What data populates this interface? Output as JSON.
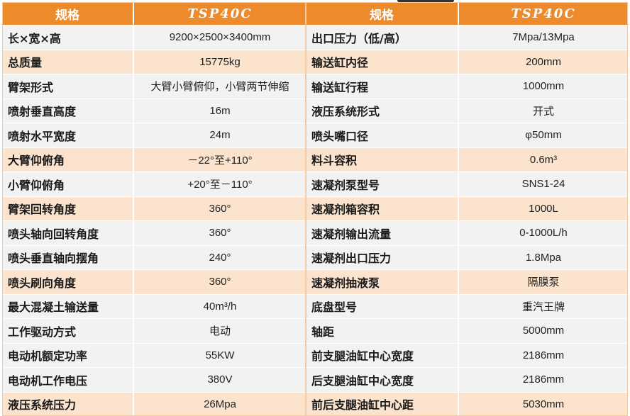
{
  "left": {
    "header": {
      "spec": "规格",
      "model": "TSP40C"
    },
    "rows": [
      {
        "label": "长×宽×高",
        "value": "9200×2500×3400mm"
      },
      {
        "label": "总质量",
        "value": "15775kg"
      },
      {
        "label": "臂架形式",
        "value": "大臂小臂俯仰，小臂两节伸缩"
      },
      {
        "label": "喷射垂直高度",
        "value": "16m"
      },
      {
        "label": "喷射水平宽度",
        "value": "24m"
      },
      {
        "label": "大臂仰俯角",
        "value": "－22°至+110°"
      },
      {
        "label": "小臂仰俯角",
        "value": "+20°至－110°"
      },
      {
        "label": "臂架回转角度",
        "value": "360°"
      },
      {
        "label": "喷头轴向回转角度",
        "value": "360°"
      },
      {
        "label": "喷头垂直轴向摆角",
        "value": "240°"
      },
      {
        "label": "喷头刷向角度",
        "value": "360°"
      },
      {
        "label": "最大混凝土输送量",
        "value": "40m³/h"
      },
      {
        "label": "工作驱动方式",
        "value": "电动"
      },
      {
        "label": "电动机额定功率",
        "value": "55KW"
      },
      {
        "label": "电动机工作电压",
        "value": "380V"
      },
      {
        "label": "液压系统压力",
        "value": "26Mpa"
      }
    ]
  },
  "right": {
    "header": {
      "spec": "规格",
      "model": "TSP40C"
    },
    "rows": [
      {
        "label": "出口压力（低/高）",
        "value": "7Mpa/13Mpa"
      },
      {
        "label": "输送缸内径",
        "value": "200mm"
      },
      {
        "label": "输送缸行程",
        "value": "1000mm"
      },
      {
        "label": "液压系统形式",
        "value": "开式"
      },
      {
        "label": "喷头嘴口径",
        "value": "φ50mm"
      },
      {
        "label": "料斗容积",
        "value": "0.6m³"
      },
      {
        "label": "速凝剂泵型号",
        "value": "SNS1-24"
      },
      {
        "label": "速凝剂箱容积",
        "value": "1000L"
      },
      {
        "label": "速凝剂输出流量",
        "value": "0-1000L/h"
      },
      {
        "label": "速凝剂出口压力",
        "value": "1.8Mpa"
      },
      {
        "label": "速凝剂抽液泵",
        "value": "隔膜泵"
      },
      {
        "label": "底盘型号",
        "value": "重汽王牌"
      },
      {
        "label": "轴距",
        "value": "5000mm"
      },
      {
        "label": "前支腿油缸中心宽度",
        "value": "2186mm"
      },
      {
        "label": "后支腿油缸中心宽度",
        "value": "2186mm"
      },
      {
        "label": "前后支腿油缸中心距",
        "value": "5030mm"
      }
    ]
  }
}
